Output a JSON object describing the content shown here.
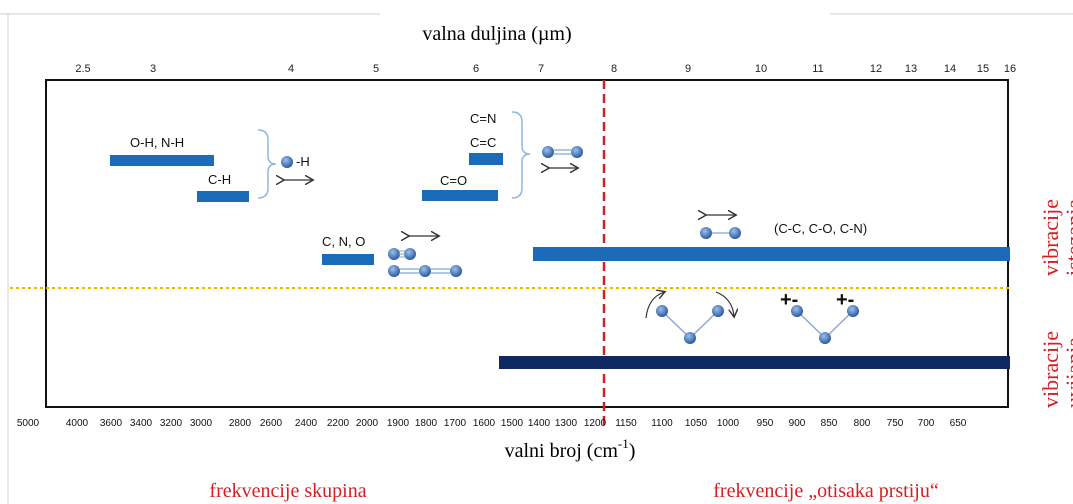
{
  "top_axis": {
    "title": "valna duljina (µm)",
    "ticks": [
      "2.5",
      "3",
      "4",
      "5",
      "6",
      "7",
      "8",
      "9",
      "10",
      "11",
      "12",
      "13",
      "14",
      "15",
      "16"
    ]
  },
  "bottom_axis": {
    "title_base": "valni broj (cm",
    "title_sup": "-1",
    "title_end": ")",
    "ticks": [
      "5000",
      "4000",
      "3600",
      "3400",
      "3200",
      "3000",
      "2800",
      "2600",
      "2400",
      "2200",
      "2000",
      "1900",
      "1800",
      "1700",
      "1600",
      "1500",
      "1400",
      "1300",
      "1200",
      "1150",
      "1100",
      "1050",
      "1000",
      "950",
      "900",
      "850",
      "800",
      "750",
      "700",
      "650"
    ]
  },
  "bands": {
    "oh_nh": "O-H, N-H",
    "ch": "C-H",
    "x_h": "-H",
    "cn_triple": "C=N",
    "cc_double": "C=C",
    "co_double": "C=O",
    "cno": "C, N, O",
    "fingerprint": "(C-C, C-O, C-N)"
  },
  "charges": {
    "left": "+-",
    "right": "+-"
  },
  "right_labels": {
    "stretch_1": "vibracije",
    "stretch_2": "istezanja",
    "bend_1": "vibracije",
    "bend_2": "uvijanja"
  },
  "bottom_labels": {
    "group": "frekvencije skupina",
    "fingerprint": "frekvencije „otisaka prstiju“"
  },
  "colors": {
    "band": "#1a6bb8",
    "band_dark": "#0f2a63",
    "atom": "#3b6cb0",
    "red": "#d42020",
    "yellow": "#f0b400",
    "bracket": "#8fb6de"
  }
}
